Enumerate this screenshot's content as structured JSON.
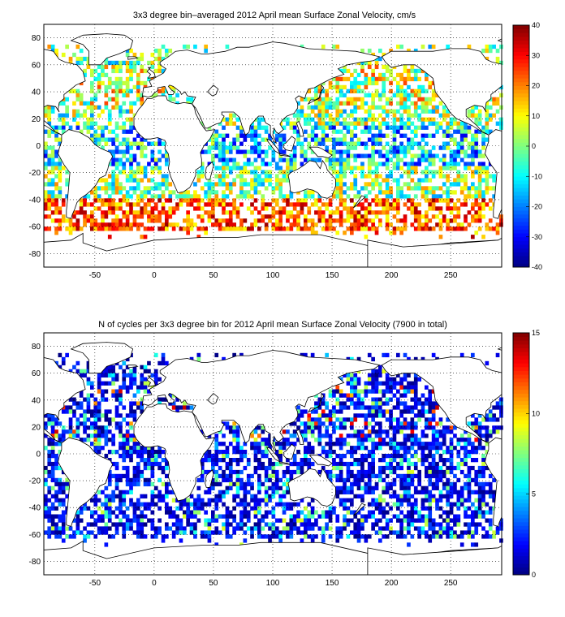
{
  "chart_data": [
    {
      "type": "heatmap",
      "title": "3x3 degree bin–averaged 2012 April mean Surface Zonal Velocity, cm/s",
      "xlim": [
        -93,
        293
      ],
      "ylim": [
        -90,
        90
      ],
      "x_ticks": [
        "-50",
        "0",
        "50",
        "100",
        "150",
        "200",
        "250"
      ],
      "y_ticks": [
        "80",
        "60",
        "40",
        "20",
        "0",
        "-20",
        "-40",
        "-60",
        "-80"
      ],
      "grid": true,
      "bin_size_deg": 3,
      "colorbar": {
        "min": -40,
        "max": 40,
        "ticks": [
          "40",
          "30",
          "20",
          "10",
          "0",
          "-10",
          "-20",
          "-30",
          "-40"
        ],
        "colormap": "jet",
        "placement": "right"
      }
    },
    {
      "type": "heatmap",
      "title": "N of cycles per 3x3 degree bin for 2012 April mean Surface Zonal Velocity (7900 in total)",
      "xlim": [
        -93,
        293
      ],
      "ylim": [
        -90,
        90
      ],
      "x_ticks": [
        "-50",
        "0",
        "50",
        "100",
        "150",
        "200",
        "250"
      ],
      "y_ticks": [
        "80",
        "60",
        "40",
        "20",
        "0",
        "-20",
        "-40",
        "-60",
        "-80"
      ],
      "grid": true,
      "bin_size_deg": 3,
      "colorbar": {
        "min": 0,
        "max": 15,
        "ticks": [
          "15",
          "10",
          "5",
          "0"
        ],
        "colormap": "jet",
        "placement": "right"
      }
    }
  ]
}
